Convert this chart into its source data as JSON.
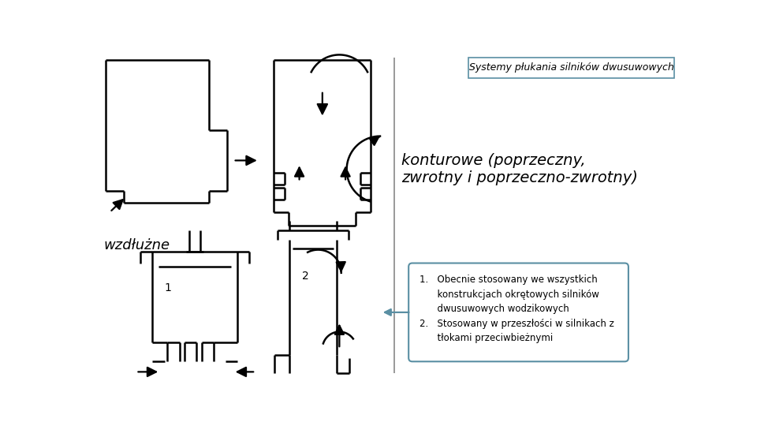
{
  "bg_color": "#ffffff",
  "title_box_text": "Systemy płukania silników dwusuwowych",
  "konturowe_text": "konturowe (poprzeczny,\nzwrotny i poprzeczno-zwrotny)",
  "wzdluzne_text": "wzdłużne",
  "label1": "1",
  "label2": "2",
  "line_color": "#000000",
  "box_border_color": "#5a8fa3",
  "title_border_color": "#5a8fa3",
  "arrow_color": "#5a8fa3",
  "divider_color": "#888888"
}
